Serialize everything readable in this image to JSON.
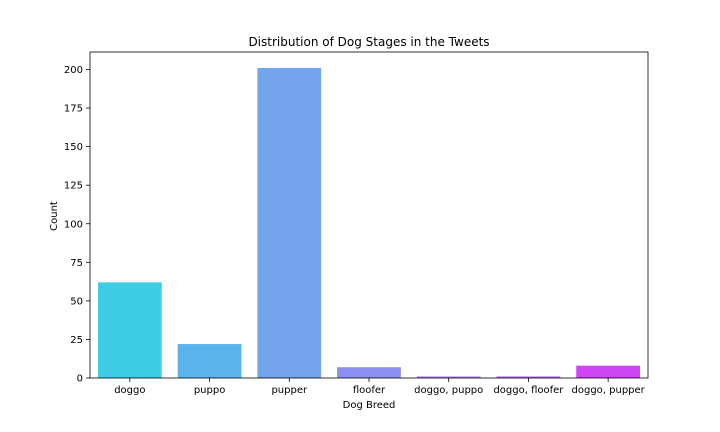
{
  "chart_data": {
    "type": "bar",
    "title": "Distribution of Dog Stages in the Tweets",
    "xlabel": "Dog Breed",
    "ylabel": "Count",
    "categories": [
      "doggo",
      "puppo",
      "pupper",
      "floofer",
      "doggo, puppo",
      "doggo, floofer",
      "doggo, pupper"
    ],
    "values": [
      62,
      22,
      201,
      7,
      1,
      1,
      8
    ],
    "colors": [
      "#3ecde5",
      "#5ab3ea",
      "#74a5ec",
      "#8c8ff0",
      "#a977f2",
      "#b75ff4",
      "#cf45f3"
    ],
    "ylim": [
      0,
      210
    ],
    "yticks": [
      0,
      25,
      50,
      75,
      100,
      125,
      150,
      175,
      200
    ],
    "grid": false,
    "legend": "none"
  }
}
